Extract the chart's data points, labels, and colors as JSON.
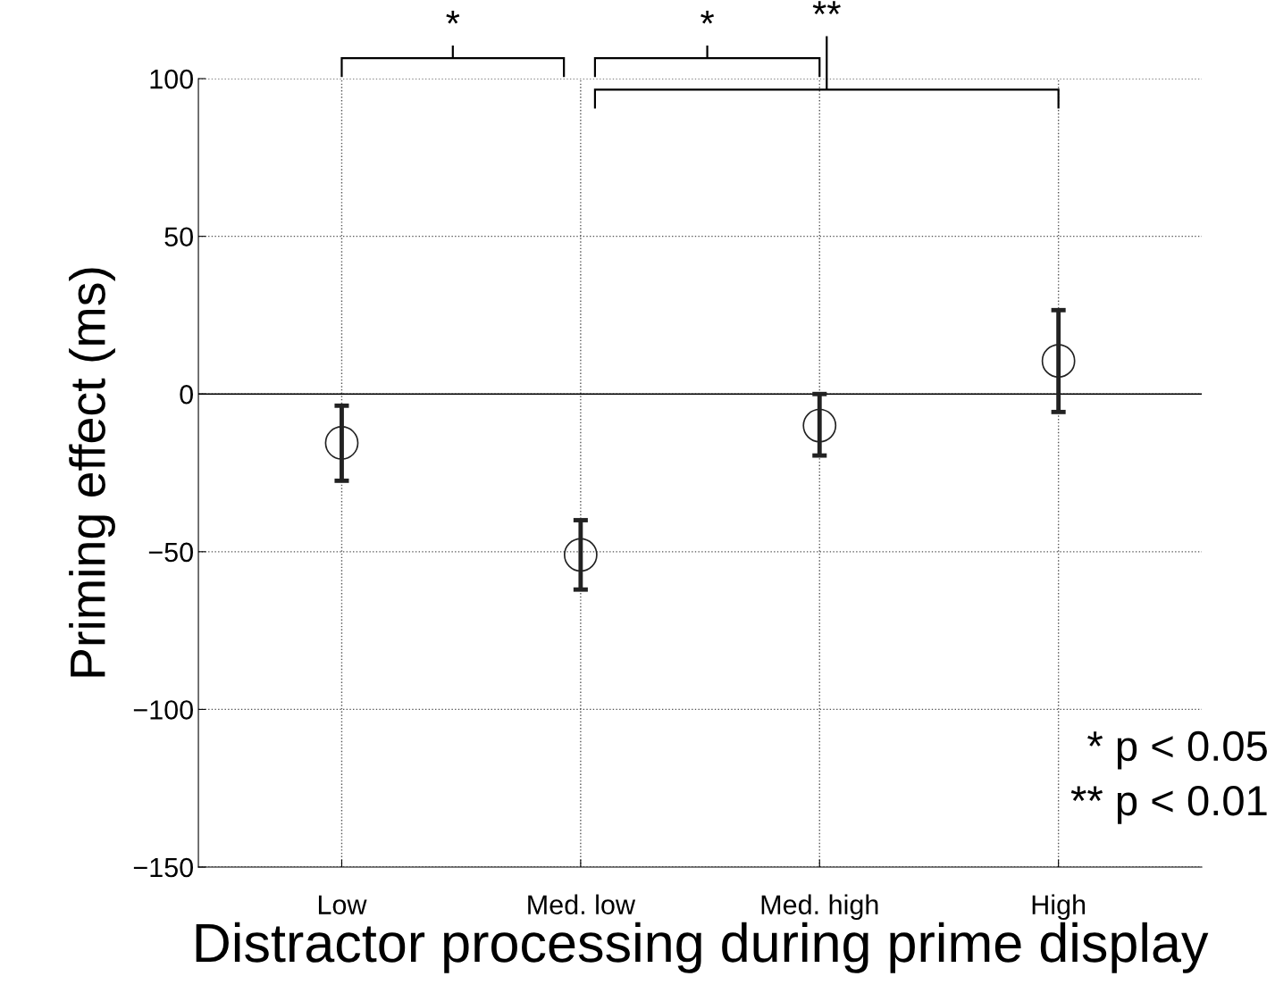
{
  "chart_data": {
    "type": "scatter",
    "xlabel": "Distractor processing during prime display",
    "ylabel": "Priming effect (ms)",
    "categories": [
      "Low",
      "Med. low",
      "Med. high",
      "High"
    ],
    "series": [
      {
        "color": "#222222",
        "values": [
          -15.5,
          -51,
          -10,
          10.5
        ],
        "errors": [
          [
            -27.5,
            -3.7
          ],
          [
            -62,
            -40
          ],
          [
            -19.5,
            0
          ],
          [
            -5.7,
            26.6
          ]
        ]
      }
    ],
    "ylim": [
      -150,
      100
    ],
    "yticks": [
      -150,
      -100,
      -50,
      0,
      50,
      100
    ],
    "grid": true,
    "marker": "circle",
    "ref_lines": [
      {
        "axis": "y",
        "value": 0,
        "color": "#000000",
        "line_style": "solid"
      }
    ],
    "annotations": [
      "*",
      "*",
      "**",
      "* p < 0.05",
      "** p < 0.01"
    ]
  }
}
